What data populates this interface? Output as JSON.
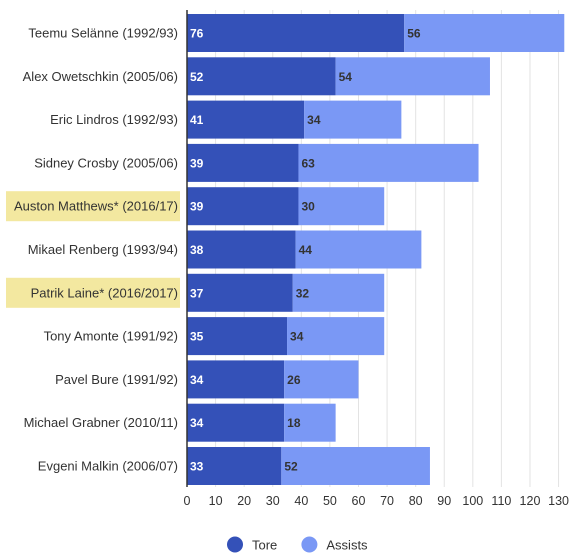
{
  "chart_data": {
    "type": "bar",
    "orientation": "horizontal",
    "stacked": true,
    "categories": [
      "Teemu Selänne (1992/93)",
      "Alex Owetschkin (2005/06)",
      "Eric Lindros (1992/93)",
      "Sidney Crosby (2005/06)",
      "Auston Matthews* (2016/17)",
      "Mikael Renberg (1993/94)",
      "Patrik Laine* (2016/2017)",
      "Tony Amonte (1991/92)",
      "Pavel Bure (1991/92)",
      "Michael Grabner (2010/11)",
      "Evgeni Malkin (2006/07)"
    ],
    "highlighted_categories": [
      "Auston Matthews* (2016/17)",
      "Patrik Laine* (2016/2017)"
    ],
    "highlight_color": "#f3e8a0",
    "series": [
      {
        "name": "Tore",
        "color": "#3451b8",
        "label_color": "#ffffff",
        "values": [
          76,
          52,
          41,
          39,
          39,
          38,
          37,
          35,
          34,
          34,
          33
        ]
      },
      {
        "name": "Assists",
        "color": "#7a98f5",
        "label_color": "#333333",
        "values": [
          56,
          54,
          34,
          63,
          30,
          44,
          32,
          34,
          26,
          18,
          52
        ]
      }
    ],
    "xticks": [
      0,
      10,
      20,
      30,
      40,
      50,
      60,
      70,
      80,
      90,
      100,
      110,
      120,
      130
    ],
    "xlim": [
      0,
      134
    ],
    "grid": true,
    "legend_position": "bottom-center",
    "title": "",
    "xlabel": "",
    "ylabel": ""
  }
}
